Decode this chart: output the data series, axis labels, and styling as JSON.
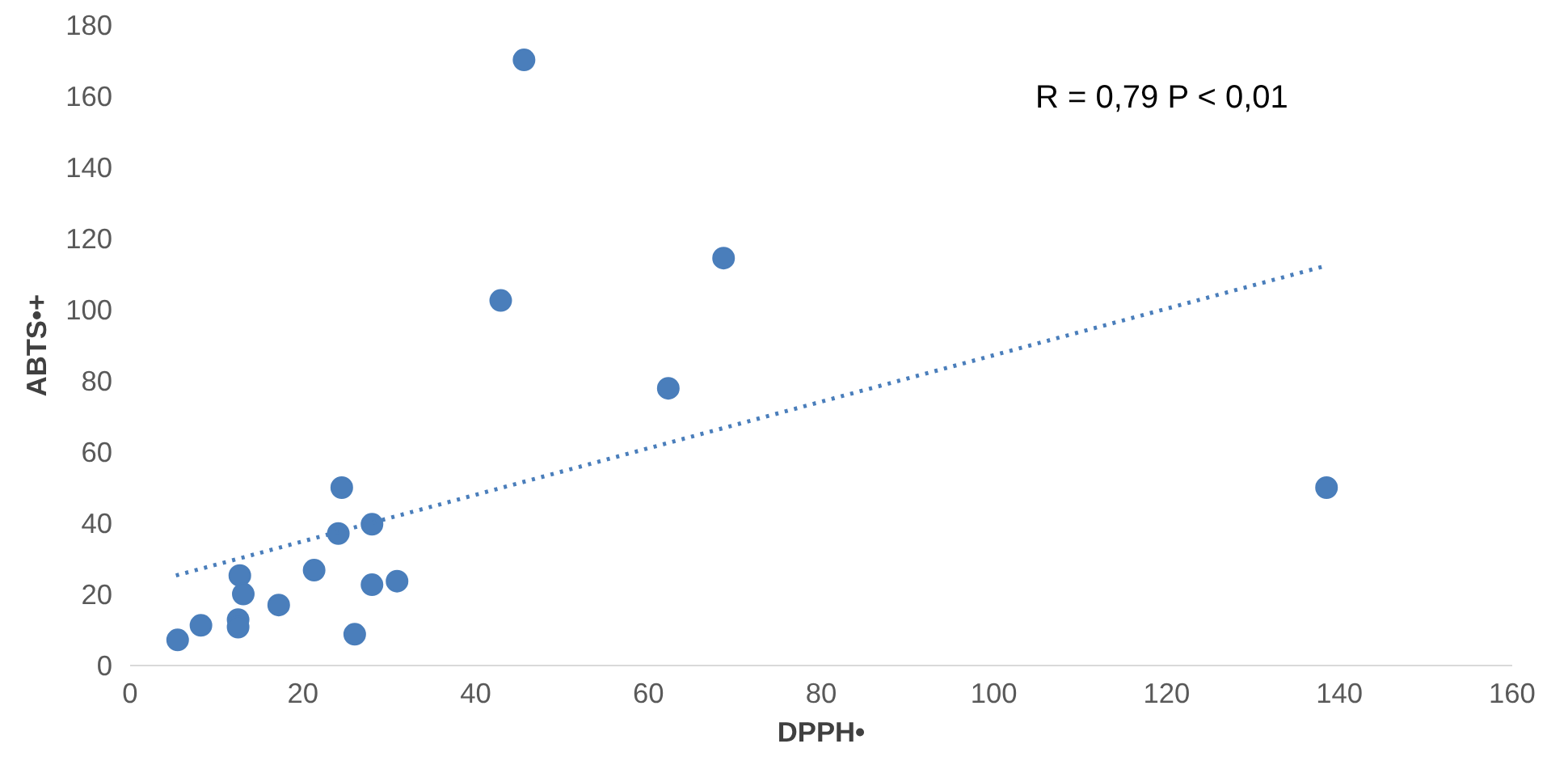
{
  "chart_data": {
    "type": "scatter",
    "xlabel": "DPPH•",
    "ylabel": "ABTS•+",
    "xlim": [
      0,
      160
    ],
    "xticks": [
      0,
      20,
      40,
      60,
      80,
      100,
      120,
      140,
      160
    ],
    "ylim": [
      0,
      180
    ],
    "yticks": [
      0,
      20,
      40,
      60,
      80,
      100,
      120,
      140,
      160,
      180
    ],
    "grid": false,
    "marker": "circle",
    "annotations": [
      "R = 0,79  P < 0,01"
    ],
    "series": [
      {
        "color": "#4a7ebb",
        "x": [
          5.5,
          8.2,
          12.7,
          13.1,
          12.5,
          12.5,
          17.2,
          21.3,
          24.5,
          24.1,
          28.0,
          28.0,
          30.9,
          26.0,
          42.9,
          45.6,
          62.3,
          68.7,
          138.5
        ],
        "values": [
          7.2,
          11.3,
          25.3,
          20.1,
          12.9,
          10.8,
          17.0,
          26.8,
          50.0,
          37.1,
          39.7,
          22.7,
          23.7,
          8.8,
          102.6,
          170.2,
          77.9,
          114.5,
          50.0
        ]
      },
      {
        "type": "line",
        "line_style": "dotted",
        "marker": "none",
        "color": "#4a7ebb",
        "x": [
          5.3,
          138.5
        ],
        "values": [
          25.3,
          112.4
        ]
      }
    ]
  }
}
